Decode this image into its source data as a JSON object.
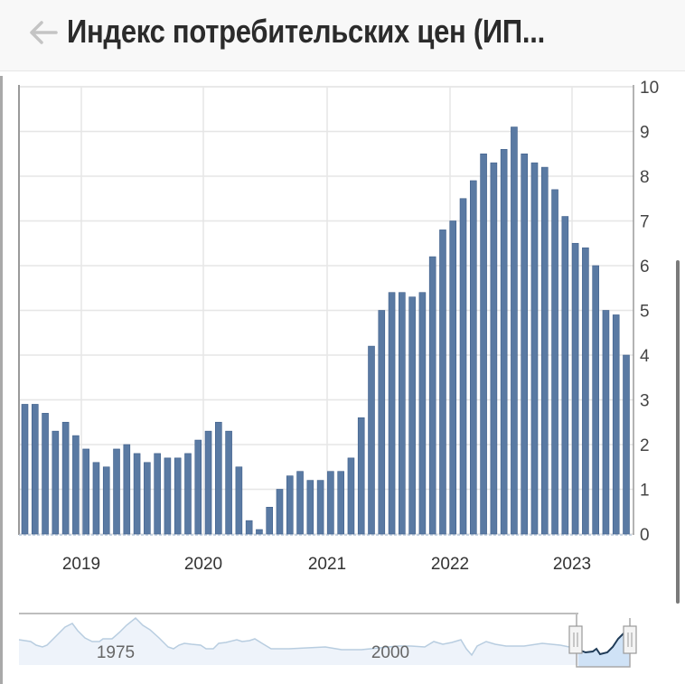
{
  "header": {
    "title": "Индекс потребительских цен (ИП...",
    "back_icon": "arrow-left-icon"
  },
  "colors": {
    "bar": "#5a7aa3",
    "bar_edge": "#3f5f8a",
    "grid": "#e6e6e6",
    "axis": "#a0a0a0",
    "navigator_line": "#b8cde0",
    "navigator_fill": "#eef3fa",
    "navigator_selected_fill": "#cfe2f6",
    "navigator_selected_line": "#1f3b57"
  },
  "chart_data": {
    "type": "bar",
    "title": "Индекс потребительских цен (ИП...",
    "xlabel": "",
    "ylabel": "",
    "ylim": [
      0,
      10
    ],
    "y_ticks": [
      "0",
      "1",
      "2",
      "3",
      "4",
      "5",
      "6",
      "7",
      "8",
      "9",
      "10"
    ],
    "y_axis_position": "right",
    "x_tick_labels": [
      "2019",
      "2020",
      "2021",
      "2022",
      "2023"
    ],
    "grid": true,
    "legend": "none",
    "categories": [
      "2018-06",
      "2018-07",
      "2018-08",
      "2018-09",
      "2018-10",
      "2018-11",
      "2018-12",
      "2019-01",
      "2019-02",
      "2019-03",
      "2019-04",
      "2019-05",
      "2019-06",
      "2019-07",
      "2019-08",
      "2019-09",
      "2019-10",
      "2019-11",
      "2019-12",
      "2020-01",
      "2020-02",
      "2020-03",
      "2020-04",
      "2020-05",
      "2020-06",
      "2020-07",
      "2020-08",
      "2020-09",
      "2020-10",
      "2020-11",
      "2020-12",
      "2021-01",
      "2021-02",
      "2021-03",
      "2021-04",
      "2021-05",
      "2021-06",
      "2021-07",
      "2021-08",
      "2021-09",
      "2021-10",
      "2021-11",
      "2021-12",
      "2022-01",
      "2022-02",
      "2022-03",
      "2022-04",
      "2022-05",
      "2022-06",
      "2022-07",
      "2022-08",
      "2022-09",
      "2022-10",
      "2022-11",
      "2022-12",
      "2023-01",
      "2023-02",
      "2023-03",
      "2023-04",
      "2023-05"
    ],
    "values": [
      2.9,
      2.9,
      2.7,
      2.3,
      2.5,
      2.2,
      1.9,
      1.6,
      1.5,
      1.9,
      2.0,
      1.8,
      1.6,
      1.8,
      1.7,
      1.7,
      1.8,
      2.1,
      2.3,
      2.5,
      2.3,
      1.5,
      0.3,
      0.1,
      0.6,
      1.0,
      1.3,
      1.4,
      1.2,
      1.2,
      1.4,
      1.4,
      1.7,
      2.6,
      4.2,
      5.0,
      5.4,
      5.4,
      5.3,
      5.4,
      6.2,
      6.8,
      7.0,
      7.5,
      7.9,
      8.5,
      8.3,
      8.6,
      9.1,
      8.5,
      8.3,
      8.2,
      7.7,
      7.1,
      6.5,
      6.4,
      6.0,
      5.0,
      4.9,
      4.0
    ],
    "navigator": {
      "labels": [
        "1975",
        "2000"
      ],
      "selected_range": [
        "2018-06",
        "2023-05"
      ]
    }
  }
}
